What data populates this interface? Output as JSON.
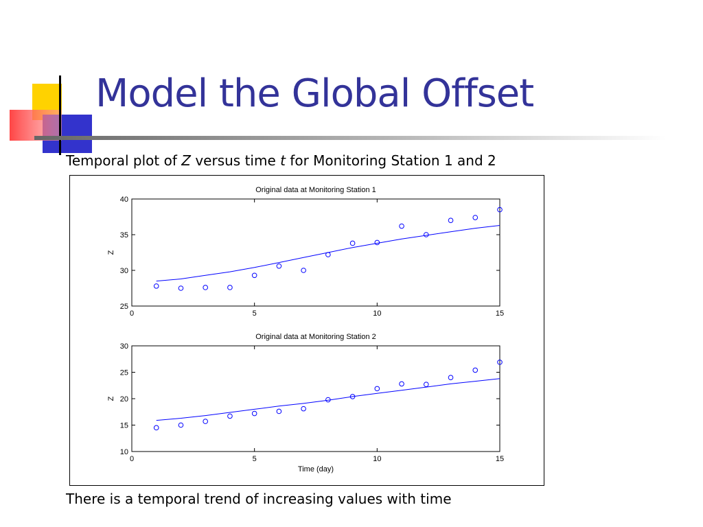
{
  "slide": {
    "title": "Model the Global Offset",
    "subtitle_part1": "Temporal plot of ",
    "subtitle_var1": "Z",
    "subtitle_part2": " versus time ",
    "subtitle_var2": "t",
    "subtitle_part3": " for Monitoring Station 1 and 2",
    "footer": "There is a temporal trend of increasing values with time"
  },
  "colors": {
    "title": "#333399",
    "accent_yellow": "#ffd200",
    "accent_red": "#ff4444",
    "accent_blue": "#3333cc",
    "data": "#0000ff"
  },
  "chart_data": [
    {
      "type": "scatter",
      "title": "Original data at Monitoring Station 1",
      "xlabel": "",
      "ylabel": "Z",
      "xlim": [
        0,
        15
      ],
      "ylim": [
        25,
        40
      ],
      "xticks": [
        0,
        5,
        10,
        15
      ],
      "yticks": [
        25,
        30,
        35,
        40
      ],
      "points": {
        "x": [
          1,
          2,
          3,
          4,
          5,
          6,
          7,
          8,
          9,
          10,
          11,
          12,
          13,
          14,
          15
        ],
        "y": [
          27.8,
          27.5,
          27.6,
          27.6,
          29.3,
          30.6,
          30.0,
          32.2,
          33.8,
          33.9,
          36.2,
          35.0,
          37.0,
          37.4,
          38.5
        ]
      },
      "trend": {
        "x": [
          1,
          2,
          3,
          4,
          5,
          6,
          7,
          8,
          9,
          10,
          11,
          12,
          13,
          14,
          15
        ],
        "y": [
          28.5,
          28.8,
          29.3,
          29.8,
          30.4,
          31.1,
          31.8,
          32.5,
          33.2,
          33.8,
          34.4,
          34.9,
          35.4,
          35.9,
          36.3
        ]
      }
    },
    {
      "type": "scatter",
      "title": "Original data at Monitoring Station 2",
      "xlabel": "Time (day)",
      "ylabel": "Z",
      "xlim": [
        0,
        15
      ],
      "ylim": [
        10,
        30
      ],
      "xticks": [
        0,
        5,
        10,
        15
      ],
      "yticks": [
        10,
        15,
        20,
        25,
        30
      ],
      "points": {
        "x": [
          1,
          2,
          3,
          4,
          5,
          6,
          7,
          8,
          9,
          10,
          11,
          12,
          13,
          14,
          15
        ],
        "y": [
          14.5,
          15.0,
          15.7,
          16.7,
          17.2,
          17.6,
          18.1,
          19.8,
          20.4,
          21.9,
          22.8,
          22.7,
          24.0,
          25.4,
          26.9
        ]
      },
      "trend": {
        "x": [
          1,
          2,
          3,
          4,
          5,
          6,
          7,
          8,
          9,
          10,
          11,
          12,
          13,
          14,
          15
        ],
        "y": [
          15.9,
          16.3,
          16.8,
          17.4,
          18.0,
          18.6,
          19.1,
          19.7,
          20.4,
          21.0,
          21.6,
          22.2,
          22.8,
          23.3,
          23.8
        ]
      }
    }
  ]
}
